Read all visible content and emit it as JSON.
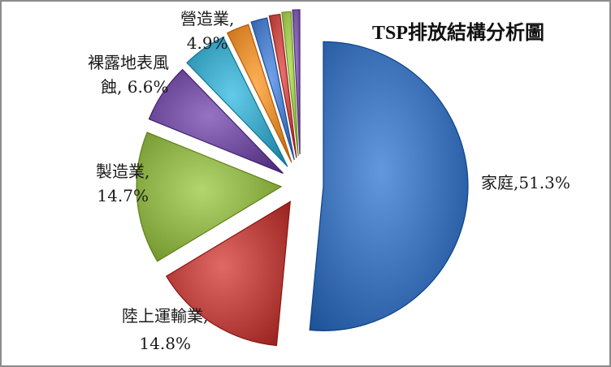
{
  "chart_data": {
    "type": "pie",
    "title": "TSP排放結構分析圖",
    "slices": [
      {
        "label_line1": "家庭,",
        "label_line2": "51.3%",
        "value": 51.3,
        "color": "#3b6fb6"
      },
      {
        "label_line1": "陸上運輸業,",
        "label_line2": "14.8%",
        "value": 14.8,
        "color": "#b8413d"
      },
      {
        "label_line1": "製造業,",
        "label_line2": "14.7%",
        "value": 14.7,
        "color": "#8cae46"
      },
      {
        "label_line1": "裸露地表風",
        "label_line2": "蝕, 6.6%",
        "value": 6.6,
        "color": "#6e4c9b"
      },
      {
        "label_line1": "營造業,",
        "label_line2": "4.9%",
        "value": 4.9,
        "color": "#3ca2c1"
      },
      {
        "label_line1": "",
        "label_line2": "",
        "value": 2.5,
        "color": "#e3892f"
      },
      {
        "label_line1": "",
        "label_line2": "",
        "value": 1.8,
        "color": "#4a7bc4"
      },
      {
        "label_line1": "",
        "label_line2": "",
        "value": 1.2,
        "color": "#c24b47"
      },
      {
        "label_line1": "",
        "label_line2": "",
        "value": 1.0,
        "color": "#9bc04f"
      },
      {
        "label_line1": "",
        "label_line2": "",
        "value": 0.8,
        "color": "#7a5aa6"
      }
    ]
  }
}
